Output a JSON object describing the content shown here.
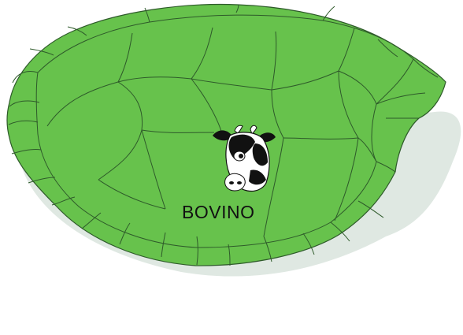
{
  "brand": {
    "name": "BOVINO",
    "mark_icon": "cow-head-icon"
  },
  "colors": {
    "shell_fill": "#67c24c",
    "shell_outline": "#2e5a2a",
    "shadow": "#dfe8e2",
    "background": "#ffffff"
  }
}
